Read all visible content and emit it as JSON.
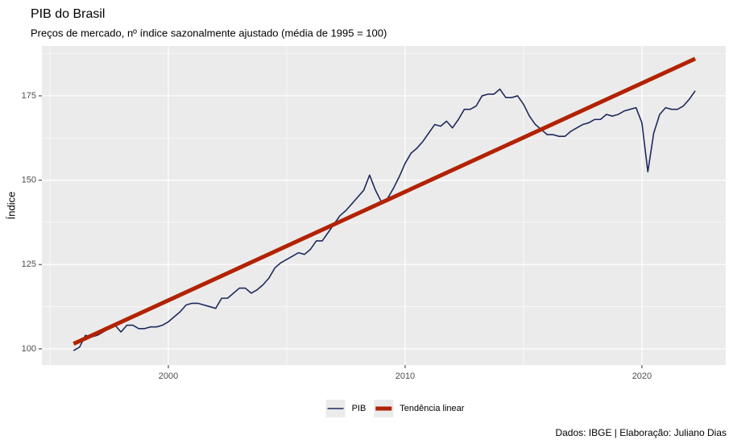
{
  "chart_data": {
    "type": "line",
    "title": "PIB do Brasil",
    "subtitle": "Preços de mercado, nº índice sazonalmente ajustado (média de 1995 = 100)",
    "y_label": "Índice",
    "caption": "Dados: IBGE | Elaboração: Juliano Dias",
    "x": [
      1996,
      1996.25,
      1996.5,
      1996.75,
      1997,
      1997.25,
      1997.5,
      1997.75,
      1998,
      1998.25,
      1998.5,
      1998.75,
      1999,
      1999.25,
      1999.5,
      1999.75,
      2000,
      2000.25,
      2000.5,
      2000.75,
      2001,
      2001.25,
      2001.5,
      2001.75,
      2002,
      2002.25,
      2002.5,
      2002.75,
      2003,
      2003.25,
      2003.5,
      2003.75,
      2004,
      2004.25,
      2004.5,
      2004.75,
      2005,
      2005.25,
      2005.5,
      2005.75,
      2006,
      2006.25,
      2006.5,
      2006.75,
      2007,
      2007.25,
      2007.5,
      2007.75,
      2008,
      2008.25,
      2008.5,
      2008.75,
      2009,
      2009.25,
      2009.5,
      2009.75,
      2010,
      2010.25,
      2010.5,
      2010.75,
      2011,
      2011.25,
      2011.5,
      2011.75,
      2012,
      2012.25,
      2012.5,
      2012.75,
      2013,
      2013.25,
      2013.5,
      2013.75,
      2014,
      2014.25,
      2014.5,
      2014.75,
      2015,
      2015.25,
      2015.5,
      2015.75,
      2016,
      2016.25,
      2016.5,
      2016.75,
      2017,
      2017.25,
      2017.5,
      2017.75,
      2018,
      2018.25,
      2018.5,
      2018.75,
      2019,
      2019.25,
      2019.5,
      2019.75,
      2020,
      2020.25,
      2020.5,
      2020.75,
      2021,
      2021.25,
      2021.5,
      2021.75,
      2022,
      2022.25
    ],
    "series": [
      {
        "name": "PIB",
        "color": "#1f2a5c",
        "width": 1.6,
        "values": [
          99.5,
          100.5,
          104,
          103.5,
          104,
          105,
          106,
          107,
          105,
          107,
          107,
          106,
          106,
          106.5,
          106.5,
          107,
          108,
          109.5,
          111,
          113,
          113.5,
          113.5,
          113,
          112.5,
          112,
          115,
          115,
          116.5,
          118,
          118,
          116.5,
          117.5,
          119,
          121,
          124,
          125.5,
          126.5,
          127.5,
          128.5,
          128,
          129.5,
          132,
          132,
          134.5,
          137,
          139.5,
          141,
          143,
          145,
          147,
          151.5,
          147,
          143.5,
          144.5,
          147.5,
          151,
          155,
          158,
          159.5,
          161.5,
          164,
          166.5,
          166,
          167.5,
          165.5,
          168,
          171,
          171,
          172,
          175,
          175.5,
          175.5,
          177,
          174.5,
          174.5,
          175,
          172.5,
          169,
          166.5,
          165,
          163.5,
          163.5,
          163,
          163,
          164.5,
          165.5,
          166.5,
          167,
          168,
          168,
          169.5,
          169,
          169.5,
          170.5,
          171,
          171.5,
          167,
          152.5,
          164,
          169.5,
          171.5,
          171,
          171,
          172,
          174,
          176.5
        ]
      },
      {
        "name": "Tendência linear",
        "color": "#b22200",
        "width": 5,
        "x": [
          1996,
          2022.25
        ],
        "values": [
          101.5,
          186
        ]
      }
    ],
    "xlim": [
      1994.66,
      2023.54
    ],
    "xticks": [
      2000,
      2010,
      2020
    ],
    "xminor": [
      1995,
      2005,
      2015
    ],
    "ylim": [
      95.2,
      189.8
    ],
    "yticks": [
      100,
      125,
      150,
      175
    ],
    "yminor": [
      112.5,
      137.5,
      162.5,
      187.5
    ],
    "grid": true,
    "legend": "bottom"
  }
}
